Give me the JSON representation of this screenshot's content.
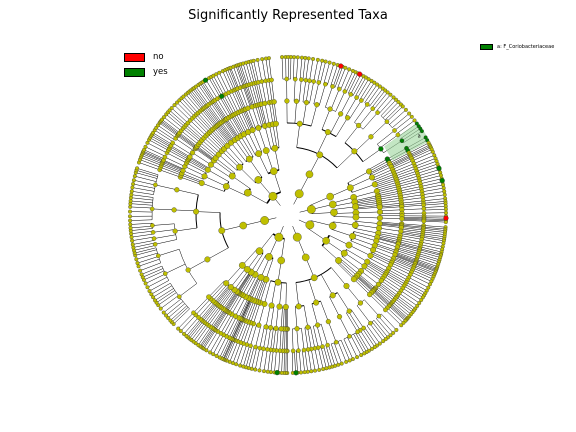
{
  "title": "Significantly Represented Taxa",
  "legend": {
    "items": [
      {
        "label": "no",
        "color": "#ff0000"
      },
      {
        "label": "yes",
        "color": "#008000"
      }
    ]
  },
  "clade_legend": {
    "label": "a: F_Coriobacteriaceae",
    "color": "#008000"
  },
  "cladogram": {
    "node_color": "#bfbf00",
    "highlight_label": "a",
    "highlight_color": "#9bd59b"
  }
}
